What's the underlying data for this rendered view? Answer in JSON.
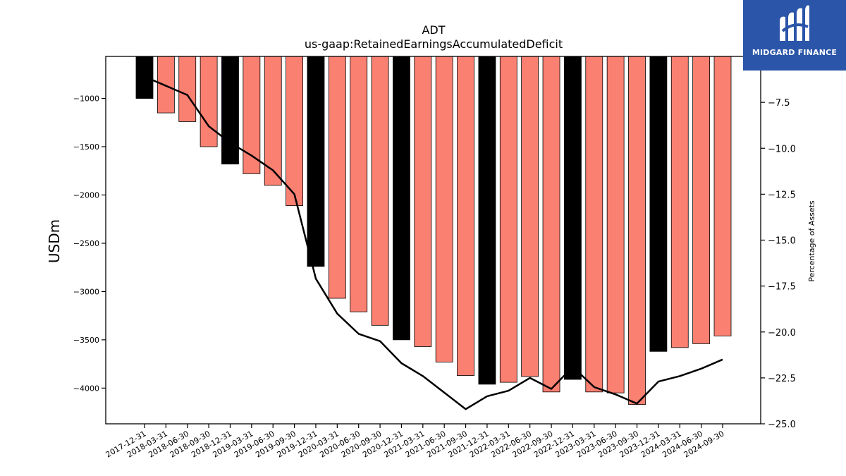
{
  "chart_data": {
    "type": "bar",
    "title": "ADT",
    "subtitle": "us-gaap:RetainedEarningsAccumulatedDeficit",
    "ylabel": "USDm",
    "y2label": "Percentage of Assets",
    "ylim": [
      -4370,
      -565
    ],
    "y2lim": [
      -25.0,
      -5.0
    ],
    "yticks": [
      -1000,
      -1500,
      -2000,
      -2500,
      -3000,
      -3500,
      -4000
    ],
    "ytick_labels": [
      "−1000",
      "−1500",
      "−2000",
      "−2500",
      "−3000",
      "−3500",
      "−4000"
    ],
    "y2ticks": [
      -7.5,
      -10.0,
      -12.5,
      -15.0,
      -17.5,
      -20.0,
      -22.5,
      -25.0
    ],
    "y2tick_labels": [
      "−7.5",
      "−10.0",
      "−12.5",
      "−15.0",
      "−17.5",
      "−20.0",
      "−22.5",
      "−25.0"
    ],
    "categories": [
      "2017-12-31",
      "2018-03-31",
      "2018-06-30",
      "2018-09-30",
      "2018-12-31",
      "2019-03-31",
      "2019-06-30",
      "2019-09-30",
      "2019-12-31",
      "2020-03-31",
      "2020-06-30",
      "2020-09-30",
      "2020-12-31",
      "2021-03-31",
      "2021-06-30",
      "2021-09-30",
      "2021-12-31",
      "2022-03-31",
      "2022-06-30",
      "2022-09-30",
      "2022-12-31",
      "2023-03-31",
      "2023-06-30",
      "2023-09-30",
      "2023-12-31",
      "2024-03-31",
      "2024-06-30",
      "2024-09-30"
    ],
    "series": [
      {
        "kind": "bar",
        "values": [
          -1000,
          -1150,
          -1240,
          -1500,
          -1680,
          -1780,
          -1900,
          -2110,
          -2740,
          -3070,
          -3210,
          -3350,
          -3500,
          -3570,
          -3730,
          -3870,
          -3960,
          -3940,
          -3880,
          -4040,
          -3910,
          -4040,
          -4050,
          -4170,
          -3620,
          -3580,
          -3540,
          -3460
        ],
        "year_end": [
          true,
          false,
          false,
          false,
          true,
          false,
          false,
          false,
          true,
          false,
          false,
          false,
          true,
          false,
          false,
          false,
          true,
          false,
          false,
          false,
          true,
          false,
          false,
          false,
          true,
          false,
          false,
          false
        ]
      },
      {
        "kind": "line",
        "axis": "right",
        "values": [
          -6.1,
          -6.6,
          -7.1,
          -8.8,
          -9.7,
          -10.4,
          -11.2,
          -12.5,
          -17.1,
          -19.0,
          -20.1,
          -20.5,
          -21.7,
          -22.4,
          -23.3,
          -24.2,
          -23.5,
          -23.2,
          -22.5,
          -23.1,
          -21.9,
          -23.0,
          -23.4,
          -23.9,
          -22.7,
          -22.4,
          -22.0,
          -21.5
        ]
      }
    ],
    "colors": {
      "bar": "#fa8072",
      "bar_year_end": "#000000",
      "line": "#000000"
    }
  },
  "logo": {
    "text": "MIDGARD FINANCE"
  }
}
